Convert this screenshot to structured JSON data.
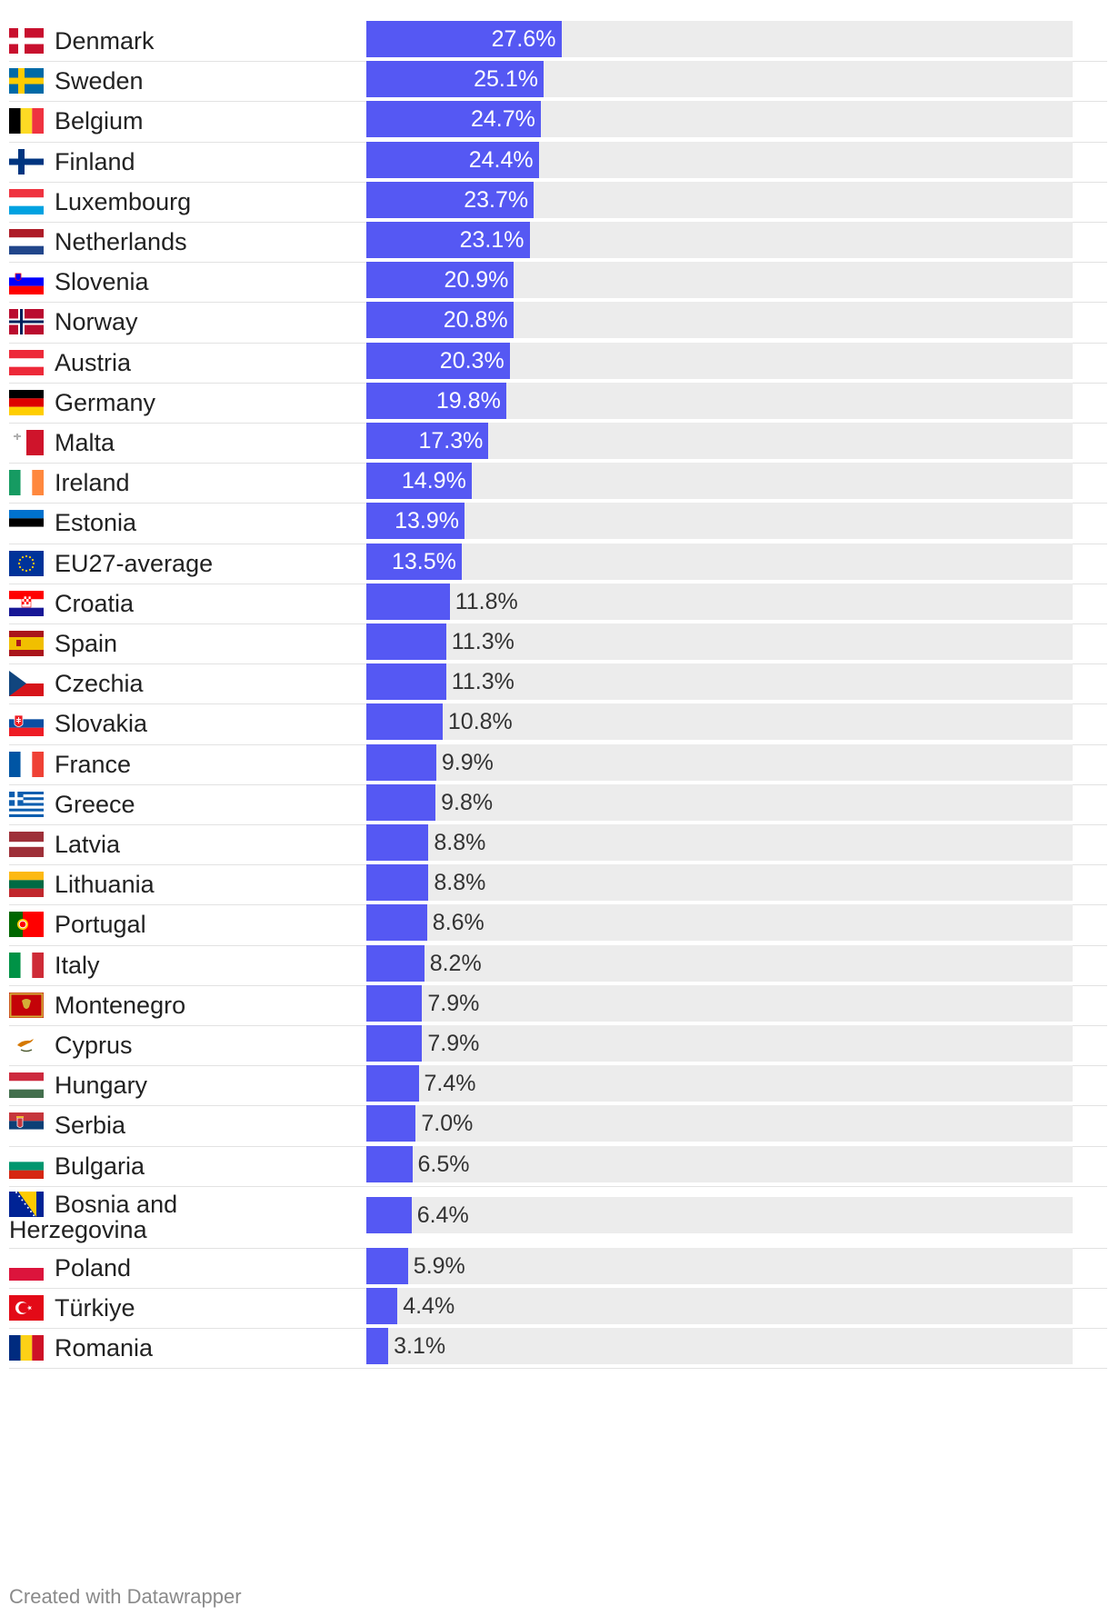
{
  "chart_data": {
    "type": "bar",
    "orientation": "horizontal",
    "xlim": [
      0,
      100
    ],
    "unit": "%",
    "bar_color": "#5558f3",
    "track_color": "#ececec",
    "categories": [
      "Denmark",
      "Sweden",
      "Belgium",
      "Finland",
      "Luxembourg",
      "Netherlands",
      "Slovenia",
      "Norway",
      "Austria",
      "Germany",
      "Malta",
      "Ireland",
      "Estonia",
      "EU27-average",
      "Croatia",
      "Spain",
      "Czechia",
      "Slovakia",
      "France",
      "Greece",
      "Latvia",
      "Lithuania",
      "Portugal",
      "Italy",
      "Montenegro",
      "Cyprus",
      "Hungary",
      "Serbia",
      "Bulgaria",
      "Bosnia and Herzegovina",
      "Poland",
      "Türkiye",
      "Romania"
    ],
    "labels": [
      "27.6%",
      "25.1%",
      "24.7%",
      "24.4%",
      "23.7%",
      "23.1%",
      "20.9%",
      "20.8%",
      "20.3%",
      "19.8%",
      "17.3%",
      "14.9%",
      "13.9%",
      "13.5%",
      "11.8%",
      "11.3%",
      "11.3%",
      "10.8%",
      "9.9%",
      "9.8%",
      "8.8%",
      "8.8%",
      "8.6%",
      "8.2%",
      "7.9%",
      "7.9%",
      "7.4%",
      "7.0%",
      "6.5%",
      "6.4%",
      "5.9%",
      "4.4%",
      "3.1%"
    ],
    "values": [
      27.6,
      25.1,
      24.7,
      24.4,
      23.7,
      23.1,
      20.9,
      20.8,
      20.3,
      19.8,
      17.3,
      14.9,
      13.9,
      13.5,
      11.8,
      11.3,
      11.3,
      10.8,
      9.9,
      9.8,
      8.8,
      8.8,
      8.6,
      8.2,
      7.9,
      7.9,
      7.4,
      7.0,
      6.5,
      6.4,
      5.9,
      4.4,
      3.1
    ],
    "flag_icons": [
      "denmark-flag-icon",
      "sweden-flag-icon",
      "belgium-flag-icon",
      "finland-flag-icon",
      "luxembourg-flag-icon",
      "netherlands-flag-icon",
      "slovenia-flag-icon",
      "norway-flag-icon",
      "austria-flag-icon",
      "germany-flag-icon",
      "malta-flag-icon",
      "ireland-flag-icon",
      "estonia-flag-icon",
      "eu-flag-icon",
      "croatia-flag-icon",
      "spain-flag-icon",
      "czechia-flag-icon",
      "slovakia-flag-icon",
      "france-flag-icon",
      "greece-flag-icon",
      "latvia-flag-icon",
      "lithuania-flag-icon",
      "portugal-flag-icon",
      "italy-flag-icon",
      "montenegro-flag-icon",
      "cyprus-flag-icon",
      "hungary-flag-icon",
      "serbia-flag-icon",
      "bulgaria-flag-icon",
      "bosnia-flag-icon",
      "poland-flag-icon",
      "turkiye-flag-icon",
      "romania-flag-icon"
    ]
  },
  "footer": {
    "credit": "Created with Datawrapper"
  }
}
